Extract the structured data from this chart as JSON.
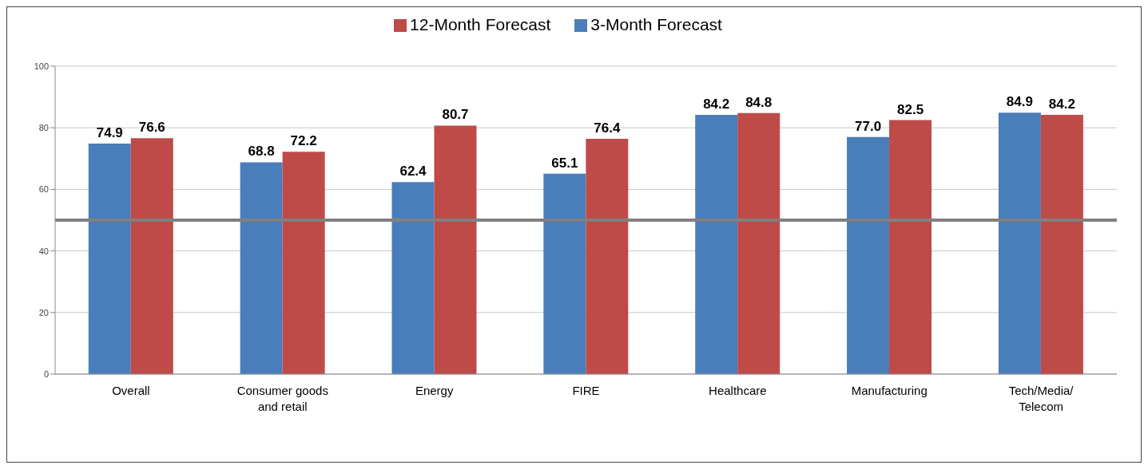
{
  "chart_data": {
    "type": "bar",
    "categories": [
      "Overall",
      "Consumer goods and retail",
      "Energy",
      "FIRE",
      "Healthcare",
      "Manufacturing",
      "Tech/Media/Telecom"
    ],
    "series": [
      {
        "name": "3-Month Forecast",
        "color": "#4a7ebb",
        "values": [
          74.9,
          68.8,
          62.4,
          65.1,
          84.2,
          77.0,
          84.9
        ],
        "value_labels": [
          "74.9",
          "68.8",
          "62.4",
          "65.1",
          "84.2",
          "77.0",
          "84.9"
        ]
      },
      {
        "name": "12-Month Forecast",
        "color": "#be4b48",
        "values": [
          76.6,
          72.2,
          80.7,
          76.4,
          84.8,
          82.5,
          84.2
        ],
        "value_labels": [
          "76.6",
          "72.2",
          "80.7",
          "76.4",
          "84.8",
          "82.5",
          "84.2"
        ]
      }
    ],
    "ylim": [
      0,
      100
    ],
    "yticks": [
      0,
      20,
      40,
      60,
      80,
      100
    ],
    "grid": "y",
    "legend": "top",
    "ref_lines": [
      {
        "axis": "y",
        "value": 50,
        "color": "#808080"
      }
    ]
  }
}
